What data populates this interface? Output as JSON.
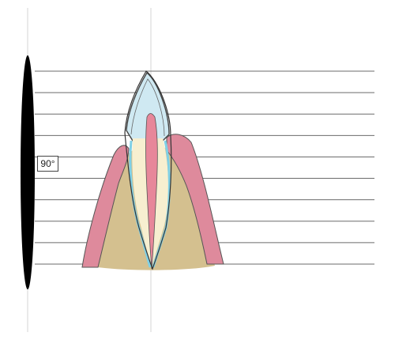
{
  "diagram": {
    "angle_label": "90°"
  },
  "colors": {
    "film": "#000000",
    "parallel_lines": "#6b6b6b",
    "guide_lines": "#d6d6d6",
    "enamel": "#cfe9f2",
    "pulp": "#e7879a",
    "dentin": "#f7efd0",
    "cementum": "#7fd0e6",
    "gingiva": "#de8a9c",
    "bone": "#d4c08f",
    "outline": "#555555"
  },
  "parallel_line_count": 10
}
